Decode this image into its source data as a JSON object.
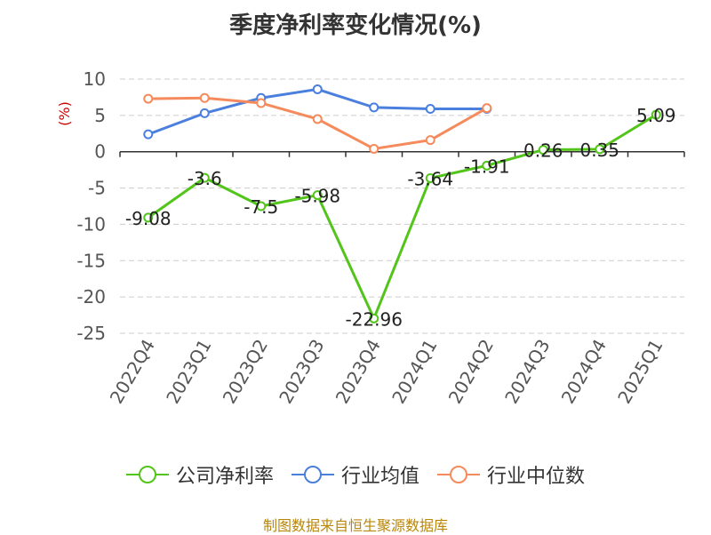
{
  "chart_data": {
    "type": "line",
    "title": "季度净利率变化情况(%)",
    "ylabel": "(%)",
    "xlabel": "",
    "categories": [
      "2022Q4",
      "2023Q1",
      "2023Q2",
      "2023Q3",
      "2023Q4",
      "2024Q1",
      "2024Q2",
      "2024Q3",
      "2024Q4",
      "2025Q1"
    ],
    "ylim": [
      -25,
      10
    ],
    "yticks": [
      10,
      5,
      0,
      -5,
      -10,
      -15,
      -20,
      -25
    ],
    "grid": true,
    "legend_position": "bottom",
    "series": [
      {
        "name": "公司净利率",
        "color": "#52c41a",
        "values": [
          -9.08,
          -3.6,
          -7.5,
          -5.98,
          -22.96,
          -3.64,
          -1.91,
          0.26,
          0.35,
          5.09
        ],
        "data_labels": [
          "-9.08",
          "-3.6",
          "-7.5",
          "-5.98",
          "-22.96",
          "-3.64",
          "-1.91",
          "0.26",
          "0.35",
          "5.09"
        ]
      },
      {
        "name": "行业均值",
        "color": "#4a7fde",
        "values": [
          2.4,
          5.3,
          7.4,
          8.6,
          6.1,
          5.9,
          5.9,
          null,
          null,
          null
        ]
      },
      {
        "name": "行业中位数",
        "color": "#f58a5c",
        "values": [
          7.3,
          7.4,
          6.7,
          4.5,
          0.4,
          1.6,
          6.0,
          null,
          null,
          null
        ]
      }
    ]
  },
  "source": "制图数据来自恒生聚源数据库"
}
